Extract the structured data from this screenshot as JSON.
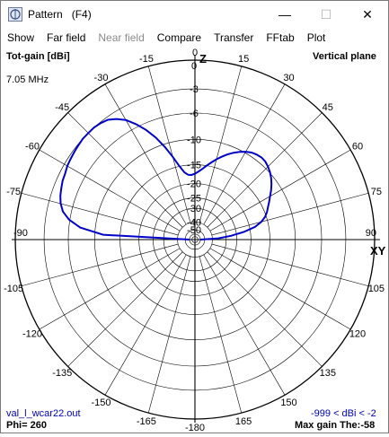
{
  "window": {
    "title": "Pattern   (F4)",
    "minimize_glyph": "—",
    "maximize_glyph": "☐",
    "close_glyph": "✕"
  },
  "menu": [
    {
      "label": "Show",
      "enabled": true
    },
    {
      "label": "Far field",
      "enabled": true
    },
    {
      "label": "Near field",
      "enabled": false
    },
    {
      "label": "Compare",
      "enabled": true
    },
    {
      "label": "Transfer",
      "enabled": true
    },
    {
      "label": "FFtab",
      "enabled": true
    },
    {
      "label": "Plot",
      "enabled": true
    }
  ],
  "plot": {
    "gain_label": "Tot-gain [dBi]",
    "frequency": "7.05 MHz",
    "plane_label": "Vertical plane",
    "axis_z": "Z",
    "axis_xy": "XY",
    "angle_labels": [
      "0",
      "15",
      "30",
      "45",
      "60",
      "75",
      "90",
      "105",
      "120",
      "135",
      "150",
      "165",
      "-180",
      "-165",
      "-150",
      "-135",
      "-120",
      "-105",
      "-90",
      "-75",
      "-60",
      "-45",
      "-30",
      "-15"
    ],
    "ring_labels": [
      "0",
      "-3",
      "-6",
      "-10",
      "-15",
      "-20",
      "-25",
      "-30",
      "-40",
      "-50"
    ],
    "file_name": "val_l_wcar22.out",
    "phi_label": "Phi= 260",
    "range_label": "-999 < dBi < -2",
    "max_gain_label": "Max gain The:-58",
    "colors": {
      "pattern": "#0000c8",
      "grid": "#000000",
      "blue_text": "#0000b4"
    }
  },
  "chart_data": {
    "type": "polar",
    "title": "Tot-gain [dBi]",
    "angle_unit": "deg",
    "radial_ticks": [
      0,
      -3,
      -6,
      -10,
      -15,
      -20,
      -25,
      -30,
      -40,
      -50
    ],
    "series": [
      {
        "name": "",
        "theta_deg": [
          -90,
          -87,
          -84,
          -81,
          -78,
          -75,
          -72,
          -69,
          -66,
          -63,
          -60,
          -57,
          -54,
          -51,
          -48,
          -45,
          -42,
          -39,
          -36,
          -33,
          -30,
          -27,
          -24,
          -21,
          -18,
          -15,
          -12,
          -9,
          -6,
          -3,
          0,
          3,
          6,
          9,
          12,
          15,
          18,
          21,
          24,
          27,
          30,
          33,
          36,
          39,
          42,
          45,
          48,
          51,
          54,
          57,
          60,
          63,
          66,
          69,
          72,
          75,
          78,
          81,
          84,
          87,
          90
        ],
        "gain_dbi": [
          -60,
          -11.5,
          -7.6,
          -5.9,
          -4.9,
          -4.4,
          -4.1,
          -3.9,
          -3.7,
          -3.6,
          -3.4,
          -3.3,
          -3.2,
          -3.1,
          -3.0,
          -3.0,
          -3.0,
          -3.1,
          -3.3,
          -3.8,
          -4.5,
          -5.6,
          -6.9,
          -8.5,
          -10.5,
          -12.7,
          -14.9,
          -16.6,
          -17.4,
          -17.5,
          -17.2,
          -16.6,
          -15.9,
          -15.0,
          -14.1,
          -13.2,
          -12.4,
          -11.6,
          -10.9,
          -10.3,
          -9.8,
          -9.4,
          -9.2,
          -9.1,
          -9.2,
          -9.5,
          -9.9,
          -10.4,
          -11.0,
          -11.7,
          -12.5,
          -13.2,
          -13.9,
          -14.5,
          -15.3,
          -16.5,
          -18.4,
          -22.0,
          -27.5,
          -35.0,
          -60
        ]
      }
    ]
  }
}
